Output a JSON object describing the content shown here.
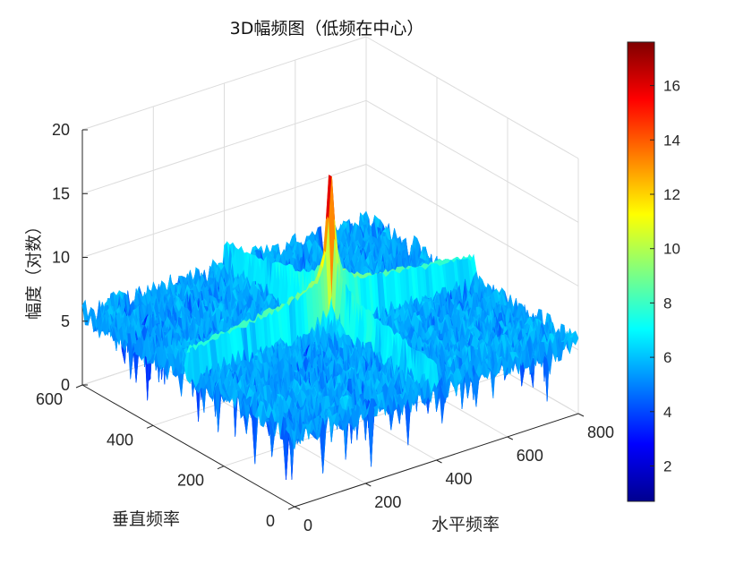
{
  "chart_data": {
    "type": "surface",
    "title": "3D幅频图（低频在中心）",
    "xlabel": "水平频率",
    "ylabel": "垂直频率",
    "zlabel": "幅度（对数）",
    "xlim": [
      0,
      800
    ],
    "ylim": [
      0,
      600
    ],
    "zlim": [
      0,
      20
    ],
    "xticks": [
      "0",
      "200",
      "400",
      "600",
      "800"
    ],
    "yticks": [
      "0",
      "200",
      "400",
      "600"
    ],
    "zticks": [
      "0",
      "5",
      "10",
      "15",
      "20"
    ],
    "colormap": "jet",
    "colorbar": {
      "range": [
        0.7,
        17.6
      ],
      "ticks": [
        "2",
        "4",
        "6",
        "8",
        "10",
        "12",
        "14",
        "16"
      ]
    },
    "grid": true,
    "surface_description_values": {
      "background_level_approx": 5.5,
      "central_cross_ridge_level_approx": 9,
      "peak_at_center_approx": 17.5,
      "center_x": 400,
      "center_y": 300
    }
  }
}
